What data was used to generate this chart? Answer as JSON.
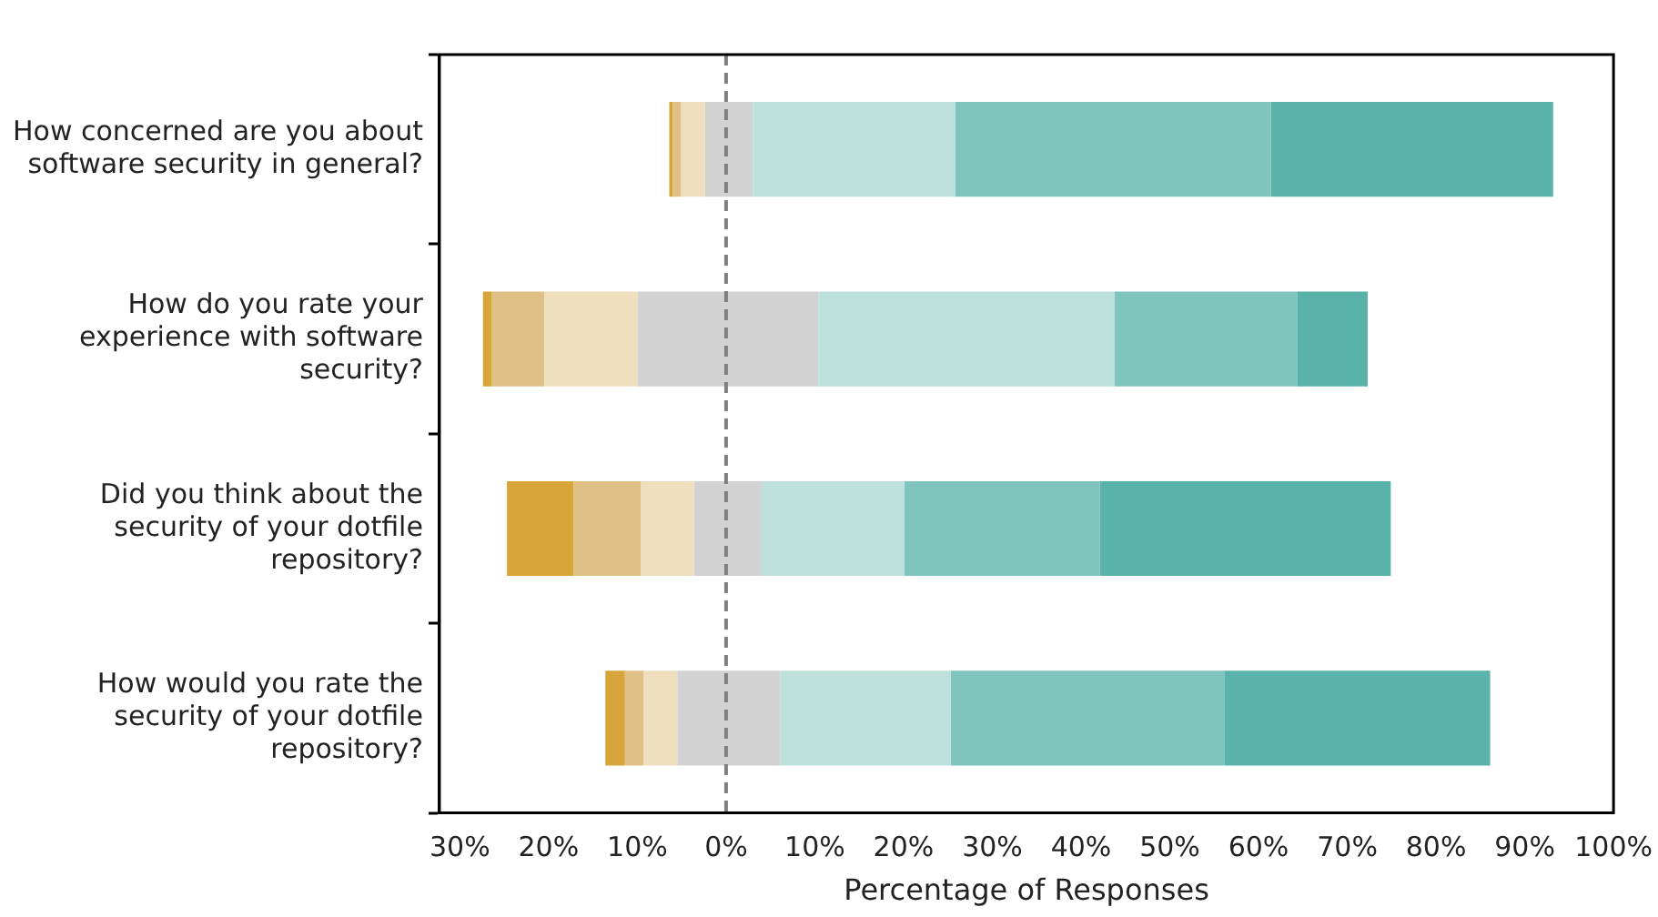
{
  "chart_data": {
    "type": "bar",
    "orientation": "horizontal",
    "xlabel": "Percentage of Responses",
    "categories": [
      "How concerned are you about\nsoftware security in general?",
      "How do you rate your\nexperience with software\nsecurity?",
      "Did you think about the\nsecurity of your dotfile\nrepository?",
      "How would you rate the\nsecurity of your dotfile\nrepository?"
    ],
    "series": [
      {
        "color": "#d8a53a",
        "base": [
          -6.4,
          -27.4,
          -24.7,
          -13.6
        ],
        "values": [
          0.4,
          1.0,
          7.5,
          2.2
        ]
      },
      {
        "color": "#dfc186",
        "base": [
          -6.0,
          -26.4,
          -17.2,
          -11.4
        ],
        "values": [
          0.9,
          5.9,
          7.6,
          2.1
        ]
      },
      {
        "color": "#efdfbf",
        "base": [
          -5.1,
          -20.5,
          -9.6,
          -9.3
        ],
        "values": [
          2.7,
          10.5,
          6.0,
          3.8
        ]
      },
      {
        "color": "#d3d3d3",
        "base": [
          -2.4,
          -10.0,
          -3.6,
          -5.5
        ],
        "values": [
          5.4,
          20.4,
          7.6,
          11.6
        ]
      },
      {
        "color": "#bde0dd",
        "base": [
          3.0,
          10.4,
          4.0,
          6.1
        ],
        "values": [
          22.8,
          33.4,
          16.1,
          19.2
        ]
      },
      {
        "color": "#7fc4bd",
        "base": [
          25.8,
          43.8,
          20.1,
          25.3
        ],
        "values": [
          35.6,
          20.6,
          22.0,
          30.9
        ]
      },
      {
        "color": "#5ab3aa",
        "base": [
          61.4,
          64.4,
          42.1,
          56.2
        ],
        "values": [
          31.8,
          7.9,
          32.8,
          29.9
        ]
      }
    ],
    "xlim": [
      -32.3,
      100
    ],
    "xticks": [
      {
        "value": -30,
        "label": "30%"
      },
      {
        "value": -20,
        "label": "20%"
      },
      {
        "value": -10,
        "label": "10%"
      },
      {
        "value": 0,
        "label": "0%"
      },
      {
        "value": 10,
        "label": "10%"
      },
      {
        "value": 20,
        "label": "20%"
      },
      {
        "value": 30,
        "label": "30%"
      },
      {
        "value": 40,
        "label": "40%"
      },
      {
        "value": 50,
        "label": "50%"
      },
      {
        "value": 60,
        "label": "60%"
      },
      {
        "value": 70,
        "label": "70%"
      },
      {
        "value": 80,
        "label": "80%"
      },
      {
        "value": 90,
        "label": "90%"
      },
      {
        "value": 100,
        "label": "100%"
      }
    ],
    "ref_lines": [
      {
        "axis": "x",
        "value": 0,
        "color": "#808080",
        "line_style": "dashed"
      }
    ],
    "grid": false,
    "legend": false
  }
}
